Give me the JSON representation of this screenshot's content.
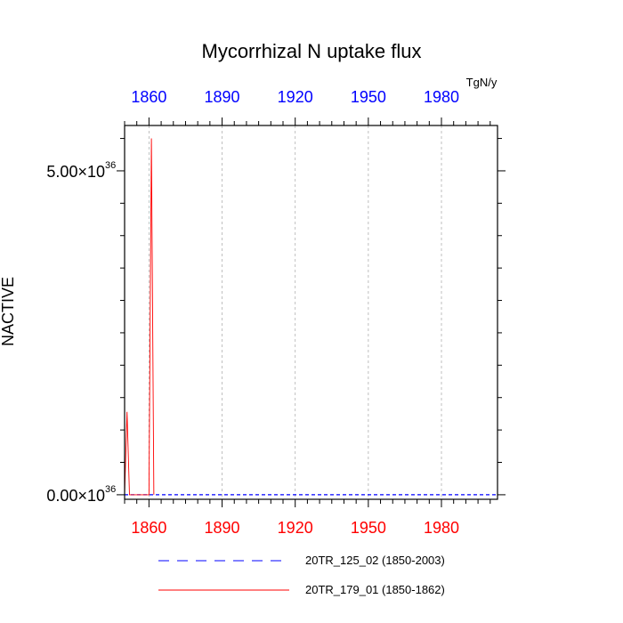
{
  "chart_data": {
    "type": "line",
    "title": "Mycorrhizal N uptake flux",
    "units": "TgN/y",
    "ylabel": "NACTIVE",
    "xlabel": "",
    "xlim": [
      1850,
      2003
    ],
    "ylim": [
      -7e+34,
      5.7e+36
    ],
    "bottom_axis": {
      "ticks": [
        1860,
        1890,
        1920,
        1950,
        1980
      ],
      "color": "#ff0000"
    },
    "top_axis": {
      "ticks": [
        1860,
        1890,
        1920,
        1950,
        1980
      ],
      "color": "#0000ff"
    },
    "y_ticks": [
      {
        "value": 0,
        "mantissa": "0.00",
        "exponent": "36"
      },
      {
        "value": 5e+36,
        "mantissa": "5.00",
        "exponent": "36"
      }
    ],
    "y_tick_times": "×",
    "x_grid": true,
    "series": [
      {
        "name": "20TR_125_02 (1850-2003)",
        "color": "#0000ff",
        "style": "dashed",
        "x": [
          1850,
          2003
        ],
        "y": [
          0,
          0
        ]
      },
      {
        "name": "20TR_179_01 (1850-1862)",
        "color": "#ff0000",
        "style": "solid",
        "x": [
          1850,
          1851,
          1852,
          1853,
          1854,
          1855,
          1856,
          1857,
          1858,
          1859,
          1860,
          1861,
          1862
        ],
        "y": [
          0,
          1.28e+36,
          0,
          0,
          0,
          0,
          0,
          0,
          0,
          0,
          0,
          5.5e+36,
          0
        ]
      }
    ],
    "legend_position": "bottom"
  }
}
